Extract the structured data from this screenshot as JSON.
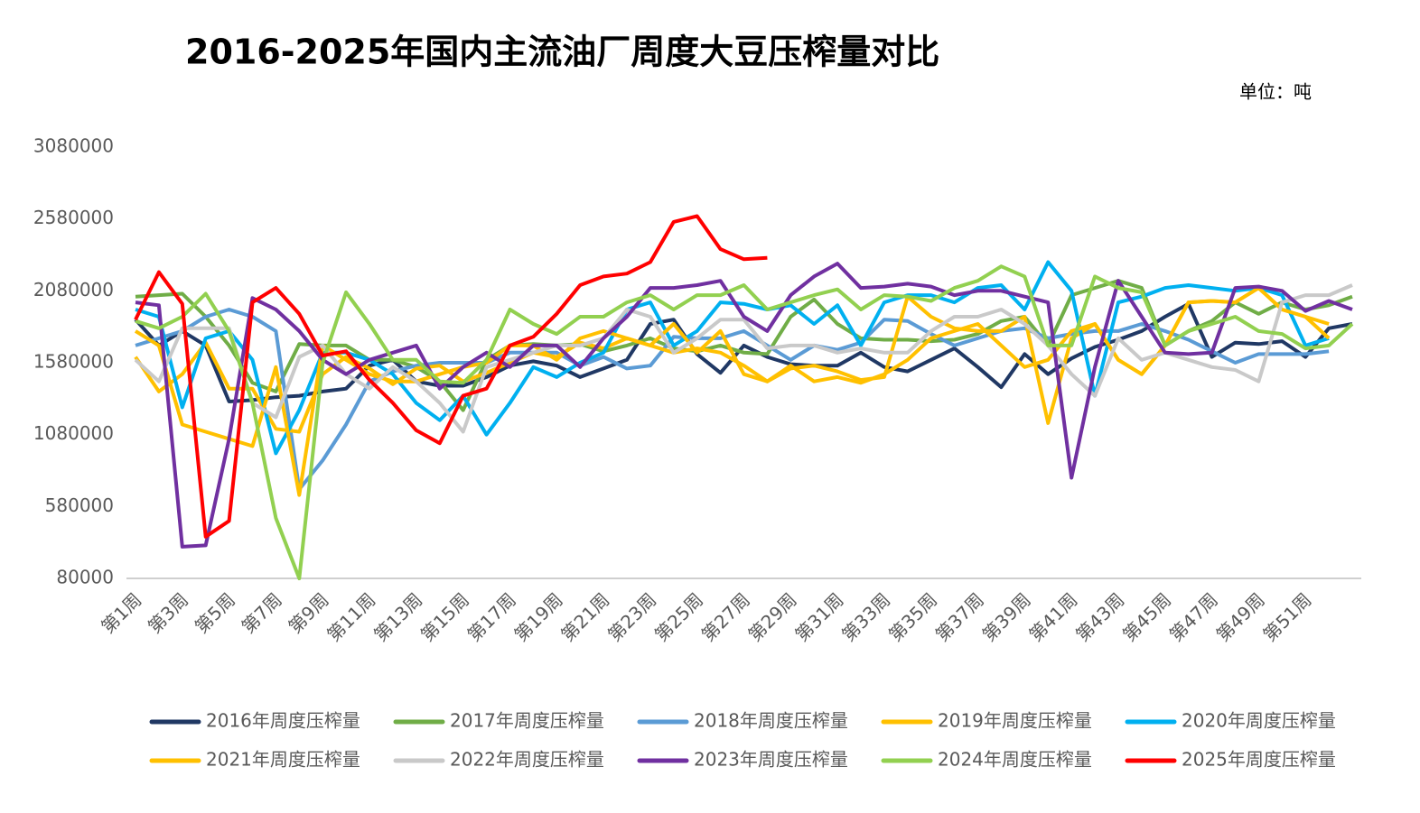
{
  "chart_data": {
    "type": "line",
    "title": "2016-2025年国内主流油厂周度大豆压榨量对比",
    "unit": "单位：吨",
    "categories": [
      "第1周",
      null,
      "第3周",
      null,
      "第5周",
      null,
      "第7周",
      null,
      "第9周",
      null,
      "第11周",
      null,
      "第13周",
      null,
      "第15周",
      null,
      "第17周",
      null,
      "第19周",
      null,
      "第21周",
      null,
      "第23周",
      null,
      "第25周",
      null,
      "第27周",
      null,
      "第29周",
      null,
      "第31周",
      null,
      "第33周",
      null,
      "第35周",
      null,
      "第37周",
      null,
      "第39周",
      null,
      "第41周",
      null,
      "第43周",
      null,
      "第45周",
      null,
      "第47周",
      null,
      "第49周",
      null,
      "第51周",
      null,
      null
    ],
    "ylim": [
      80000,
      3080000
    ],
    "yticks": [
      80000,
      580000,
      1080000,
      1580000,
      2080000,
      2580000,
      3080000
    ],
    "series": [
      {
        "name": "2016年周度压榨量",
        "color": "#203864",
        "values": [
          1880000,
          1700000,
          1800000,
          1700000,
          1310000,
          1320000,
          1340000,
          1350000,
          1380000,
          1400000,
          1560000,
          1600000,
          1450000,
          1420000,
          1420000,
          1480000,
          1560000,
          1590000,
          1560000,
          1480000,
          1540000,
          1600000,
          1850000,
          1880000,
          1640000,
          1510000,
          1700000,
          1620000,
          1570000,
          1560000,
          1560000,
          1650000,
          1550000,
          1520000,
          1600000,
          1680000,
          1550000,
          1410000,
          1640000,
          1500000,
          1610000,
          1690000,
          1740000,
          1800000,
          1900000,
          1990000,
          1620000,
          1720000,
          1710000,
          1730000,
          1620000,
          1820000,
          1850000
        ]
      },
      {
        "name": "2017年周度压榨量",
        "color": "#70ad47",
        "values": [
          2040000,
          2050000,
          2060000,
          1900000,
          1700000,
          1440000,
          1380000,
          1710000,
          1700000,
          1700000,
          1600000,
          1600000,
          1550000,
          1450000,
          1250000,
          1600000,
          1700000,
          1710000,
          1700000,
          1710000,
          1660000,
          1700000,
          1750000,
          1680000,
          1660000,
          1700000,
          1650000,
          1640000,
          1900000,
          2020000,
          1850000,
          1750000,
          1740000,
          1740000,
          1730000,
          1740000,
          1780000,
          1870000,
          1900000,
          1700000,
          2050000,
          2100000,
          2150000,
          2100000,
          1700000,
          1800000,
          1870000,
          2000000,
          1920000,
          2000000,
          1950000,
          1980000,
          2040000
        ]
      },
      {
        "name": "2018年周度压榨量",
        "color": "#5b9bd5",
        "values": [
          1700000,
          1750000,
          1800000,
          1900000,
          1950000,
          1900000,
          1800000,
          700000,
          900000,
          1150000,
          1450000,
          1520000,
          1560000,
          1580000,
          1580000,
          1580000,
          1650000,
          1650000,
          1650000,
          1560000,
          1620000,
          1540000,
          1560000,
          1760000,
          1750000,
          1750000,
          1800000,
          1700000,
          1600000,
          1700000,
          1670000,
          1720000,
          1880000,
          1870000,
          1780000,
          1700000,
          1750000,
          1800000,
          1820000,
          1750000,
          1780000,
          1800000,
          1800000,
          1850000,
          1800000,
          1740000,
          1660000,
          1580000,
          1640000,
          1640000,
          1640000,
          1660000,
          null
        ]
      },
      {
        "name": "2019年周度压榨量",
        "color": "#ffc000",
        "values": [
          1620000,
          1380000,
          1500000,
          1720000,
          1400000,
          1400000,
          1120000,
          1100000,
          1500000,
          1620000,
          1540000,
          1430000,
          1540000,
          1560000,
          1450000,
          1510000,
          1580000,
          1650000,
          1620000,
          1720000,
          1680000,
          1750000,
          1700000,
          1650000,
          1680000,
          1650000,
          1560000,
          1450000,
          1540000,
          1560000,
          1520000,
          1460000,
          1480000,
          2040000,
          1900000,
          1820000,
          1800000,
          1800000,
          1900000,
          1160000,
          1750000,
          1850000,
          1600000,
          1500000,
          1700000,
          2000000,
          2010000,
          2000000,
          2100000,
          1950000,
          1900000,
          1850000,
          null
        ]
      },
      {
        "name": "2020年周度压榨量",
        "color": "#00b0f0",
        "values": [
          1950000,
          1900000,
          1270000,
          1750000,
          1800000,
          1600000,
          950000,
          1250000,
          1650000,
          1650000,
          1600000,
          1500000,
          1300000,
          1180000,
          1350000,
          1080000,
          1300000,
          1550000,
          1480000,
          1580000,
          1650000,
          1950000,
          2000000,
          1700000,
          1800000,
          2000000,
          1990000,
          1950000,
          1980000,
          1850000,
          1980000,
          1700000,
          2000000,
          2050000,
          2050000,
          2000000,
          2100000,
          2120000,
          1950000,
          2280000,
          2080000,
          1350000,
          2000000,
          2040000,
          2100000,
          2120000,
          2100000,
          2080000,
          2100000,
          2050000,
          1700000,
          1750000,
          null
        ]
      },
      {
        "name": "2021年周度压榨量",
        "color": "#ffc000",
        "values": [
          1800000,
          1700000,
          1150000,
          1100000,
          1050000,
          1000000,
          1550000,
          660000,
          1700000,
          1600000,
          1500000,
          1450000,
          1450000,
          1500000,
          1550000,
          1580000,
          1700000,
          1700000,
          1600000,
          1750000,
          1800000,
          1750000,
          1700000,
          1850000,
          1650000,
          1800000,
          1500000,
          1450000,
          1560000,
          1450000,
          1480000,
          1440000,
          1500000,
          1600000,
          1750000,
          1800000,
          1850000,
          1700000,
          1550000,
          1600000,
          1800000,
          1850000,
          1600000,
          1500000,
          1700000,
          2000000,
          2010000,
          2000000,
          2100000,
          1950000,
          1900000,
          1750000,
          null
        ]
      },
      {
        "name": "2022年周度压榨量",
        "color": "#c9c9c9",
        "values": [
          1600000,
          1450000,
          1820000,
          1820000,
          1820000,
          1300000,
          1200000,
          1620000,
          1700000,
          1500000,
          1400000,
          1550000,
          1450000,
          1300000,
          1100000,
          1550000,
          1600000,
          1650000,
          1700000,
          1700000,
          1750000,
          1950000,
          1900000,
          1650000,
          1750000,
          1880000,
          1880000,
          1680000,
          1700000,
          1700000,
          1650000,
          1680000,
          1650000,
          1650000,
          1800000,
          1900000,
          1900000,
          1950000,
          1850000,
          1700000,
          1500000,
          1350000,
          1750000,
          1600000,
          1650000,
          1600000,
          1550000,
          1530000,
          1450000,
          2000000,
          2050000,
          2050000,
          2120000
        ]
      },
      {
        "name": "2023年周度压榨量",
        "color": "#7030a0",
        "values": [
          2000000,
          1980000,
          300000,
          310000,
          1050000,
          2030000,
          1950000,
          1800000,
          1600000,
          1500000,
          1600000,
          1650000,
          1700000,
          1400000,
          1550000,
          1650000,
          1550000,
          1700000,
          1700000,
          1550000,
          1750000,
          1900000,
          2100000,
          2100000,
          2120000,
          2150000,
          1900000,
          1800000,
          2050000,
          2180000,
          2270000,
          2100000,
          2110000,
          2130000,
          2110000,
          2050000,
          2080000,
          2080000,
          2040000,
          2000000,
          780000,
          1550000,
          2150000,
          1900000,
          1650000,
          1640000,
          1650000,
          2100000,
          2110000,
          2080000,
          1940000,
          2010000,
          1950000
        ]
      },
      {
        "name": "2024年周度压榨量",
        "color": "#92d050",
        "values": [
          1870000,
          1820000,
          1900000,
          2060000,
          1800000,
          1300000,
          500000,
          80000,
          1580000,
          2070000,
          1850000,
          1600000,
          1600000,
          1450000,
          1440000,
          1600000,
          1950000,
          1850000,
          1780000,
          1900000,
          1900000,
          2000000,
          2050000,
          1950000,
          2050000,
          2050000,
          2120000,
          1950000,
          2000000,
          2050000,
          2090000,
          1950000,
          2050000,
          2040000,
          2010000,
          2100000,
          2150000,
          2250000,
          2180000,
          1700000,
          1700000,
          2180000,
          2100000,
          2070000,
          1700000,
          1800000,
          1850000,
          1900000,
          1800000,
          1780000,
          1680000,
          1700000,
          1850000
        ]
      },
      {
        "name": "2025年周度压榨量",
        "color": "#ff0000",
        "values": [
          1880000,
          2210000,
          1990000,
          370000,
          480000,
          2000000,
          2100000,
          1920000,
          1630000,
          1660000,
          1460000,
          1300000,
          1110000,
          1020000,
          1350000,
          1400000,
          1700000,
          1760000,
          1920000,
          2120000,
          2180000,
          2200000,
          2280000,
          2560000,
          2600000,
          2370000,
          2300000,
          2310000,
          null,
          null,
          null,
          null,
          null,
          null,
          null,
          null,
          null,
          null,
          null,
          null,
          null,
          null,
          null,
          null,
          null,
          null,
          null,
          null,
          null,
          null,
          null,
          null,
          null
        ]
      }
    ]
  }
}
